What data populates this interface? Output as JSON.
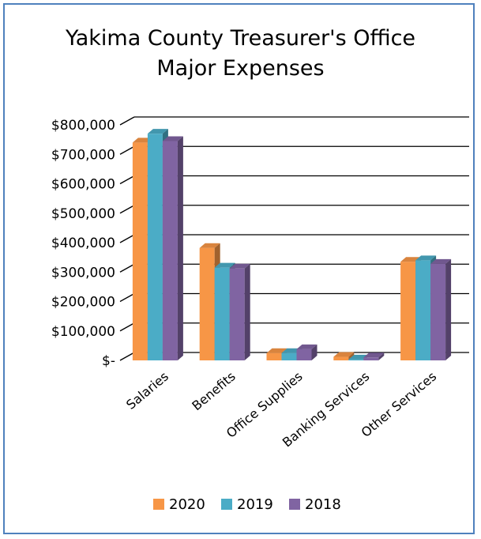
{
  "chart_data": {
    "type": "bar",
    "title_lines": [
      "Yakima County Treasurer's Office",
      "Major Expenses"
    ],
    "categories": [
      "Salaries",
      "Benefits",
      "Office Supplies",
      "Banking Services",
      "Other Services"
    ],
    "series": [
      {
        "name": "2020",
        "color": "#f79646",
        "values": [
          740000,
          382000,
          25000,
          12000,
          335000
        ]
      },
      {
        "name": "2019",
        "color": "#4bacc6",
        "values": [
          770000,
          315000,
          25000,
          3000,
          340000
        ]
      },
      {
        "name": "2018",
        "color": "#8064a2",
        "values": [
          745000,
          312000,
          38000,
          10000,
          328000
        ]
      }
    ],
    "y_ticks": [
      "$-",
      "$100,000",
      "$200,000",
      "$300,000",
      "$400,000",
      "$500,000",
      "$600,000",
      "$700,000",
      "$800,000"
    ],
    "ylim": [
      0,
      800000
    ],
    "grid": true,
    "legend_position": "bottom"
  }
}
